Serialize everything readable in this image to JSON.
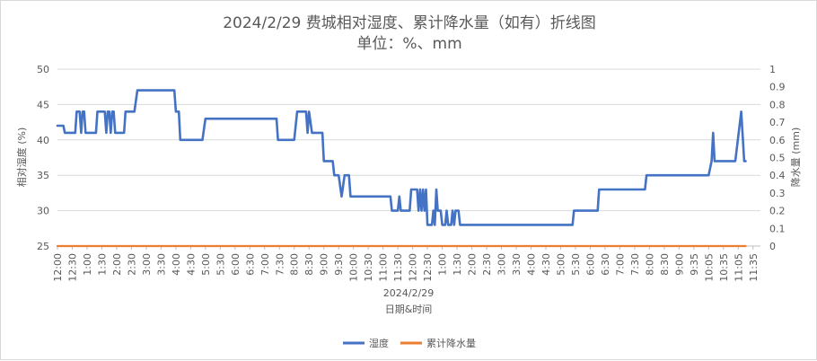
{
  "chart_data": {
    "type": "line",
    "title": "2024/2/29 费城相对湿度、累计降水量（如有）折线图",
    "subtitle": "单位：%、mm",
    "date_label": "2024/2/29",
    "xlabel": "日期&时间",
    "ylabel_left": "相对湿度 (%)",
    "ylabel_right": "降水量 (mm)",
    "ylim_left": [
      25,
      50
    ],
    "yticks_left": [
      25,
      30,
      35,
      40,
      45,
      50
    ],
    "ylim_right": [
      0,
      1
    ],
    "yticks_right": [
      0,
      0.1,
      0.2,
      0.3,
      0.4,
      0.5,
      0.6,
      0.7,
      0.8,
      0.9,
      1
    ],
    "x_tick_labels": [
      "12:00",
      "12:30",
      "1:00",
      "1:30",
      "2:00",
      "2:30",
      "3:00",
      "3:30",
      "4:00",
      "4:30",
      "5:00",
      "5:30",
      "6:00",
      "6:30",
      "7:00",
      "7:30",
      "8:00",
      "8:30",
      "9:00",
      "9:30",
      "10:00",
      "10:30",
      "11:00",
      "11:30",
      "12:00",
      "12:30",
      "1:00",
      "1:30",
      "2:00",
      "2:30",
      "3:00",
      "3:30",
      "4:00",
      "4:30",
      "5:00",
      "5:30",
      "6:00",
      "6:30",
      "7:00",
      "7:30",
      "8:00",
      "8:30",
      "9:00",
      "9:35",
      "10:05",
      "10:35",
      "11:05",
      "11:35"
    ],
    "grid": true,
    "legend_position": "bottom",
    "series": [
      {
        "name": "湿度",
        "axis": "left",
        "color": "#4472c4",
        "points": [
          [
            0,
            42
          ],
          [
            0.4,
            42
          ],
          [
            0.5,
            41
          ],
          [
            1.2,
            41
          ],
          [
            1.3,
            44
          ],
          [
            1.5,
            44
          ],
          [
            1.6,
            41
          ],
          [
            1.7,
            44
          ],
          [
            1.8,
            44
          ],
          [
            1.9,
            41
          ],
          [
            2.6,
            41
          ],
          [
            2.7,
            44
          ],
          [
            3.2,
            44
          ],
          [
            3.3,
            41
          ],
          [
            3.4,
            44
          ],
          [
            3.5,
            44
          ],
          [
            3.6,
            41
          ],
          [
            3.7,
            44
          ],
          [
            3.8,
            44
          ],
          [
            3.9,
            41
          ],
          [
            4.5,
            41
          ],
          [
            4.6,
            44
          ],
          [
            5.2,
            44
          ],
          [
            5.4,
            47
          ],
          [
            7.9,
            47
          ],
          [
            8.0,
            44
          ],
          [
            8.2,
            44
          ],
          [
            8.3,
            40
          ],
          [
            9.8,
            40
          ],
          [
            10.0,
            43
          ],
          [
            14.8,
            43
          ],
          [
            14.9,
            40
          ],
          [
            16.0,
            40
          ],
          [
            16.2,
            44
          ],
          [
            16.8,
            44
          ],
          [
            16.9,
            41
          ],
          [
            17.0,
            44
          ],
          [
            17.2,
            41
          ],
          [
            17.9,
            41
          ],
          [
            18.0,
            37
          ],
          [
            18.6,
            37
          ],
          [
            18.7,
            35
          ],
          [
            19.0,
            35
          ],
          [
            19.2,
            32
          ],
          [
            19.4,
            35
          ],
          [
            19.7,
            35
          ],
          [
            19.8,
            32
          ],
          [
            22.5,
            32
          ],
          [
            22.6,
            30
          ],
          [
            23.0,
            30
          ],
          [
            23.1,
            32
          ],
          [
            23.2,
            30
          ],
          [
            23.8,
            30
          ],
          [
            23.9,
            33
          ],
          [
            24.3,
            33
          ],
          [
            24.4,
            30
          ],
          [
            24.5,
            33
          ],
          [
            24.6,
            30
          ],
          [
            24.7,
            33
          ],
          [
            24.8,
            30
          ],
          [
            24.9,
            33
          ],
          [
            25.0,
            28
          ],
          [
            25.3,
            28
          ],
          [
            25.4,
            30
          ],
          [
            25.5,
            28
          ],
          [
            25.6,
            33
          ],
          [
            25.7,
            30
          ],
          [
            25.9,
            30
          ],
          [
            26.0,
            28
          ],
          [
            26.2,
            28
          ],
          [
            26.3,
            30
          ],
          [
            26.4,
            28
          ],
          [
            26.6,
            28
          ],
          [
            26.7,
            30
          ],
          [
            26.8,
            28
          ],
          [
            26.9,
            30
          ],
          [
            27.1,
            30
          ],
          [
            27.2,
            28
          ],
          [
            34.8,
            28
          ],
          [
            34.9,
            30
          ],
          [
            36.5,
            30
          ],
          [
            36.6,
            33
          ],
          [
            39.7,
            33
          ],
          [
            39.8,
            35
          ],
          [
            44.0,
            35
          ],
          [
            44.2,
            37
          ],
          [
            44.3,
            41
          ],
          [
            44.4,
            37
          ],
          [
            45.8,
            37
          ],
          [
            46.2,
            44
          ],
          [
            46.4,
            37
          ],
          [
            46.5,
            37
          ]
        ]
      },
      {
        "name": "累计降水量",
        "axis": "right",
        "color": "#ed7d31",
        "points": [
          [
            0,
            0
          ],
          [
            46.5,
            0
          ]
        ]
      }
    ]
  }
}
